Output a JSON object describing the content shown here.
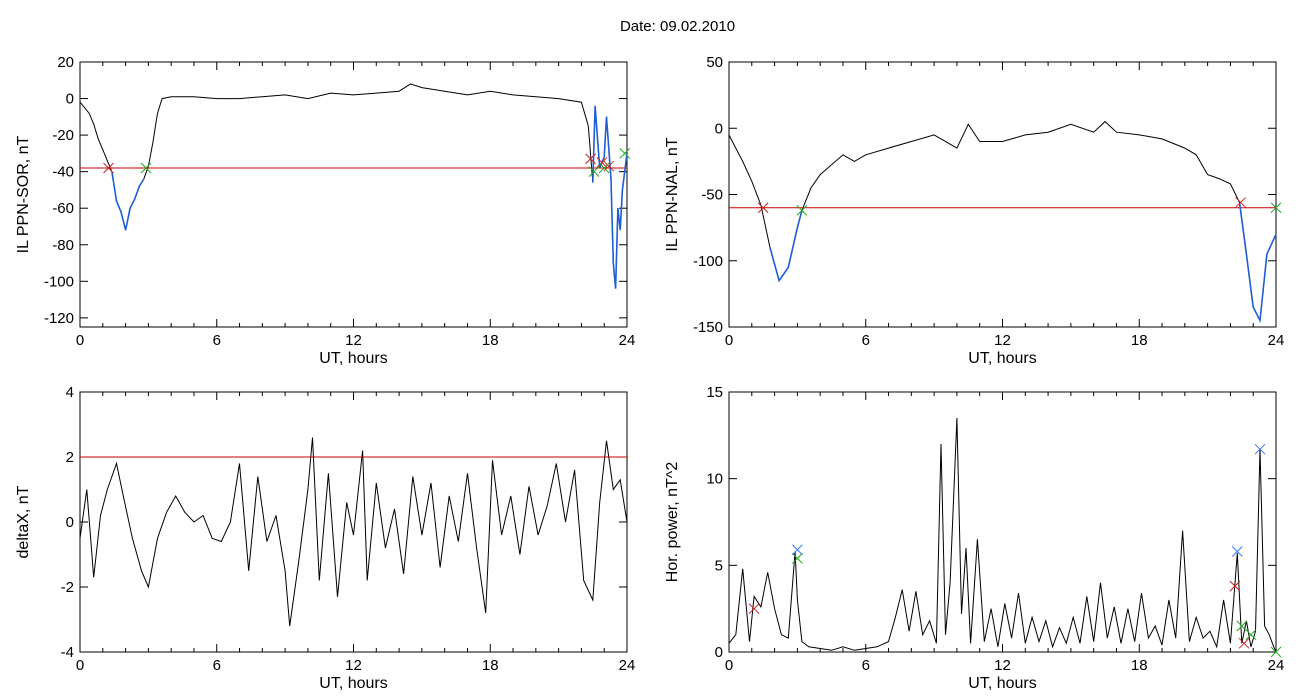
{
  "title": "Date:  09.02.2010",
  "colors": {
    "trace": "#000000",
    "threshold": "#cc0000",
    "highlight": "#1f5fd6",
    "cross_start": "#cc2222",
    "cross_end": "#22aa22",
    "cross_peak": "#3377ff"
  },
  "chart_data": [
    {
      "type": "line",
      "id": "sor",
      "xlabel": "UT, hours",
      "ylabel": "IL PPN-SOR, nT",
      "xlim": [
        0,
        24
      ],
      "ylim": [
        -125,
        20
      ],
      "xticks": [
        0,
        6,
        12,
        18,
        24
      ],
      "yticks": [
        20,
        0,
        -20,
        -40,
        -60,
        -80,
        -100,
        -120
      ],
      "threshold": -38,
      "x": [
        0,
        0.2,
        0.4,
        0.6,
        0.8,
        1.0,
        1.2,
        1.4,
        1.6,
        1.8,
        2.0,
        2.2,
        2.4,
        2.6,
        2.8,
        3.0,
        3.2,
        3.4,
        3.6,
        4.0,
        5.0,
        6.0,
        7.0,
        8.0,
        9.0,
        10.0,
        11.0,
        12.0,
        13.0,
        14.0,
        14.5,
        15.0,
        16.0,
        17.0,
        18.0,
        19.0,
        20.0,
        21.0,
        22.0,
        22.3,
        22.5,
        22.6,
        22.8,
        23.0,
        23.1,
        23.3,
        23.4,
        23.5,
        23.6,
        23.7,
        23.8,
        24.0
      ],
      "y": [
        -2,
        -5,
        -8,
        -14,
        -22,
        -28,
        -34,
        -40,
        -56,
        -62,
        -72,
        -60,
        -55,
        -48,
        -44,
        -37,
        -24,
        -8,
        0,
        1,
        1,
        0,
        0,
        1,
        2,
        0,
        3,
        2,
        3,
        4,
        8,
        6,
        4,
        2,
        4,
        2,
        1,
        0,
        -2,
        -15,
        -46,
        -4,
        -38,
        -32,
        -10,
        -44,
        -90,
        -104,
        -60,
        -72,
        -50,
        -30
      ],
      "segments": [
        [
          1.4,
          2.9
        ],
        [
          22.4,
          24.0
        ]
      ],
      "markers_start": [
        [
          1.25,
          -38
        ],
        [
          22.4,
          -33
        ],
        [
          22.9,
          -35
        ],
        [
          23.2,
          -37
        ]
      ],
      "markers_end": [
        [
          2.9,
          -38
        ],
        [
          22.55,
          -40
        ],
        [
          23.0,
          -38
        ],
        [
          23.9,
          -30
        ]
      ]
    },
    {
      "type": "line",
      "id": "nal",
      "xlabel": "UT, hours",
      "ylabel": "IL PPN-NAL, nT",
      "xlim": [
        0,
        24
      ],
      "ylim": [
        -150,
        50
      ],
      "xticks": [
        0,
        6,
        12,
        18,
        24
      ],
      "yticks": [
        50,
        0,
        -50,
        -100,
        -150
      ],
      "threshold": -60,
      "x": [
        0,
        0.3,
        0.6,
        1.0,
        1.4,
        1.8,
        2.2,
        2.6,
        3.0,
        3.2,
        3.6,
        4.0,
        5.0,
        5.5,
        6.0,
        7.0,
        8.0,
        9.0,
        10.0,
        10.5,
        11.0,
        12.0,
        13.0,
        14.0,
        15.0,
        16.0,
        16.5,
        17.0,
        18.0,
        19.0,
        20.0,
        20.5,
        21.0,
        21.5,
        22.0,
        22.4,
        22.7,
        23.0,
        23.3,
        23.6,
        24.0
      ],
      "y": [
        -5,
        -15,
        -25,
        -40,
        -58,
        -90,
        -115,
        -105,
        -75,
        -62,
        -45,
        -35,
        -20,
        -25,
        -20,
        -15,
        -10,
        -5,
        -15,
        3,
        -10,
        -10,
        -5,
        -3,
        3,
        -3,
        5,
        -3,
        -5,
        -8,
        -15,
        -20,
        -35,
        -38,
        -42,
        -56,
        -95,
        -135,
        -145,
        -95,
        -80
      ],
      "segments": [
        [
          1.6,
          3.2
        ],
        [
          22.4,
          24.0
        ]
      ],
      "markers_start": [
        [
          1.5,
          -60
        ],
        [
          22.45,
          -56
        ]
      ],
      "markers_end": [
        [
          3.2,
          -62
        ],
        [
          24.0,
          -60
        ]
      ]
    },
    {
      "type": "line",
      "id": "deltax",
      "xlabel": "UT, hours",
      "ylabel": "deltaX, nT",
      "xlim": [
        0,
        24
      ],
      "ylim": [
        -4,
        4
      ],
      "xticks": [
        0,
        6,
        12,
        18,
        24
      ],
      "yticks": [
        4,
        2,
        0,
        -2,
        -4
      ],
      "threshold": 2,
      "x": [
        0,
        0.3,
        0.6,
        0.9,
        1.2,
        1.6,
        1.9,
        2.3,
        2.7,
        3.0,
        3.4,
        3.8,
        4.2,
        4.6,
        5.0,
        5.4,
        5.8,
        6.2,
        6.6,
        7.0,
        7.4,
        7.8,
        8.2,
        8.6,
        9.0,
        9.2,
        9.6,
        10.0,
        10.2,
        10.5,
        10.9,
        11.3,
        11.7,
        12.0,
        12.4,
        12.6,
        13.0,
        13.4,
        13.8,
        14.2,
        14.6,
        15.0,
        15.4,
        15.8,
        16.2,
        16.6,
        17.0,
        17.4,
        17.8,
        18.1,
        18.5,
        18.9,
        19.3,
        19.7,
        20.1,
        20.5,
        20.9,
        21.3,
        21.7,
        22.1,
        22.5,
        22.8,
        23.1,
        23.4,
        23.7,
        24.0
      ],
      "y": [
        -0.5,
        1.0,
        -1.7,
        0.2,
        1.0,
        1.8,
        0.8,
        -0.5,
        -1.5,
        -2.0,
        -0.5,
        0.3,
        0.8,
        0.3,
        0.0,
        0.2,
        -0.5,
        -0.6,
        0.0,
        1.8,
        -1.5,
        1.4,
        -0.6,
        0.2,
        -1.5,
        -3.2,
        -1.2,
        1.0,
        2.6,
        -1.8,
        1.5,
        -2.3,
        0.6,
        -0.4,
        2.2,
        -1.8,
        1.2,
        -0.8,
        0.4,
        -1.6,
        1.4,
        -0.4,
        1.2,
        -1.4,
        0.8,
        -0.6,
        1.5,
        -0.8,
        -2.8,
        1.9,
        -0.4,
        0.8,
        -1.0,
        1.1,
        -0.4,
        0.5,
        1.8,
        0.0,
        1.6,
        -1.8,
        -2.4,
        0.6,
        2.5,
        1.0,
        1.3,
        0.0
      ],
      "segments": [],
      "markers_start": [],
      "markers_end": []
    },
    {
      "type": "line",
      "id": "power",
      "xlabel": "UT, hours",
      "ylabel": "Hor. power, nT^2",
      "xlim": [
        0,
        24
      ],
      "ylim": [
        0,
        15
      ],
      "xticks": [
        0,
        6,
        12,
        18,
        24
      ],
      "yticks": [
        15,
        10,
        5,
        0
      ],
      "threshold": null,
      "x": [
        0,
        0.3,
        0.6,
        0.9,
        1.1,
        1.4,
        1.7,
        2.0,
        2.3,
        2.6,
        2.9,
        3.0,
        3.2,
        3.5,
        4.0,
        4.5,
        5.0,
        5.5,
        6.0,
        6.5,
        7.0,
        7.3,
        7.6,
        7.9,
        8.2,
        8.5,
        8.8,
        9.1,
        9.3,
        9.5,
        9.7,
        10.0,
        10.2,
        10.4,
        10.6,
        10.9,
        11.2,
        11.5,
        11.8,
        12.1,
        12.4,
        12.7,
        13.0,
        13.3,
        13.6,
        13.9,
        14.2,
        14.5,
        14.8,
        15.1,
        15.4,
        15.7,
        16.0,
        16.3,
        16.6,
        16.9,
        17.2,
        17.5,
        17.8,
        18.1,
        18.4,
        18.7,
        19.0,
        19.3,
        19.6,
        19.9,
        20.2,
        20.5,
        20.8,
        21.1,
        21.4,
        21.7,
        22.0,
        22.3,
        22.5,
        22.7,
        22.9,
        23.1,
        23.3,
        23.5,
        23.7,
        23.9,
        24.0
      ],
      "y": [
        0.5,
        1.0,
        4.8,
        0.6,
        3.2,
        2.6,
        4.6,
        2.5,
        1.0,
        0.8,
        5.8,
        3.0,
        0.6,
        0.3,
        0.2,
        0.1,
        0.3,
        0.1,
        0.2,
        0.3,
        0.6,
        2.0,
        3.6,
        1.2,
        3.5,
        1.0,
        1.8,
        0.5,
        12.0,
        1.0,
        4.0,
        13.5,
        2.2,
        6.0,
        0.5,
        6.5,
        0.6,
        2.5,
        0.3,
        2.8,
        0.8,
        3.4,
        0.5,
        2.0,
        0.6,
        1.8,
        0.3,
        1.4,
        0.5,
        2.0,
        0.5,
        3.2,
        0.6,
        4.0,
        0.8,
        2.6,
        0.5,
        2.5,
        0.6,
        3.4,
        0.8,
        1.5,
        0.4,
        3.0,
        0.8,
        7.0,
        0.6,
        2.0,
        0.8,
        1.2,
        0.3,
        3.0,
        0.5,
        5.7,
        0.5,
        1.8,
        0.3,
        1.2,
        11.7,
        1.5,
        1.0,
        0.3,
        0.0
      ],
      "segments": [],
      "markers_start": [
        [
          1.1,
          2.5
        ],
        [
          22.2,
          3.8
        ],
        [
          22.6,
          0.5
        ]
      ],
      "markers_end": [
        [
          3.0,
          5.4
        ],
        [
          22.5,
          1.5
        ],
        [
          22.9,
          1.0
        ],
        [
          24.0,
          0.0
        ]
      ],
      "markers_peak": [
        [
          3.0,
          5.9
        ],
        [
          22.3,
          5.8
        ],
        [
          23.3,
          11.7
        ]
      ]
    }
  ]
}
